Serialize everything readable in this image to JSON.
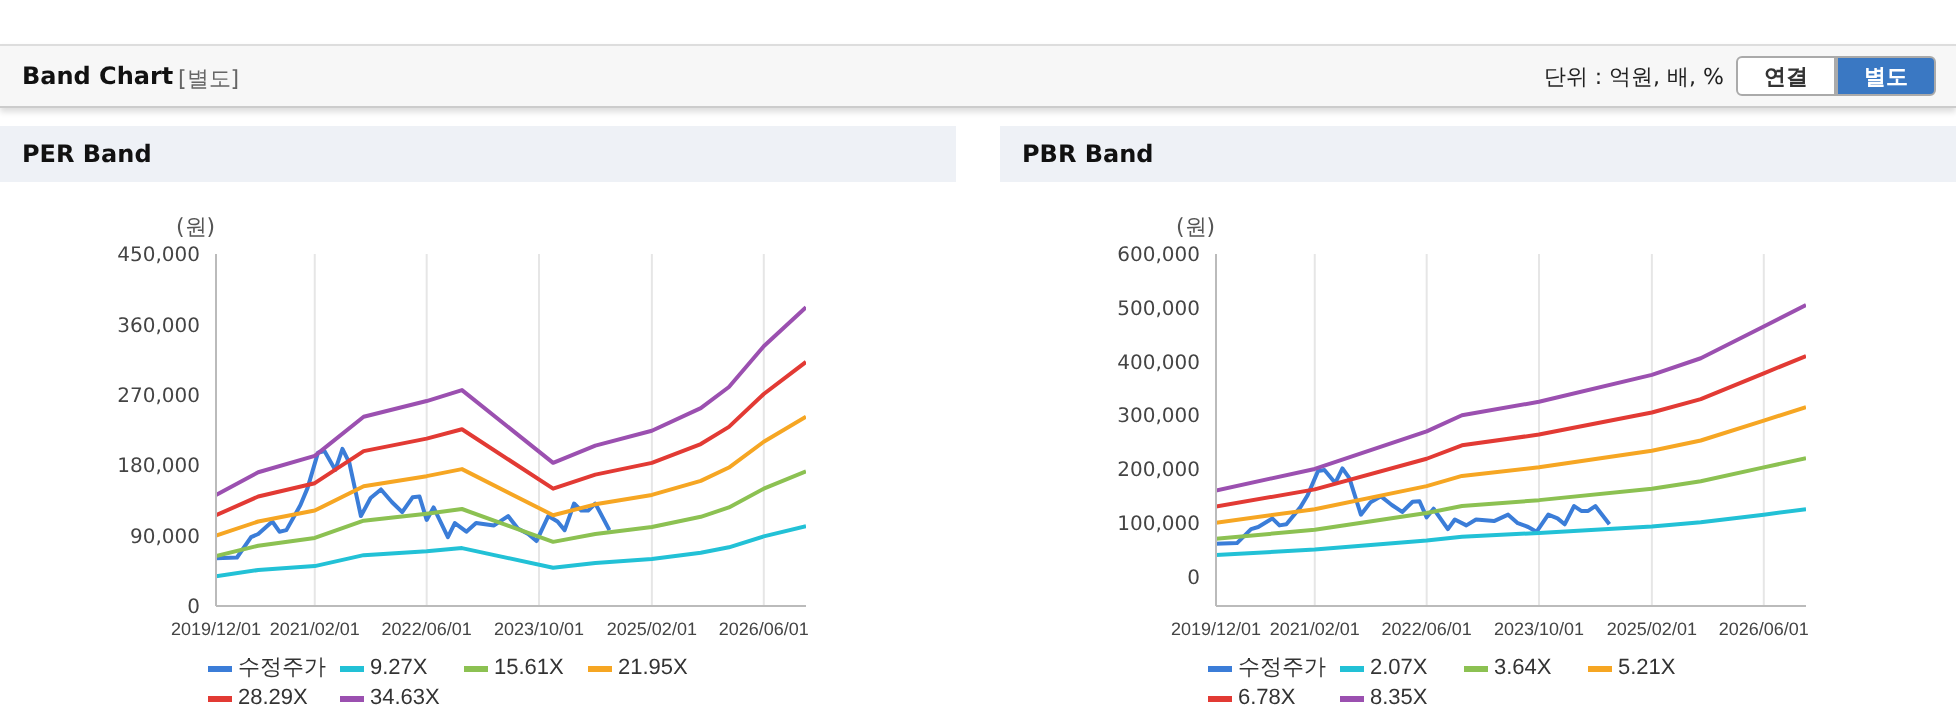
{
  "chart_data": [
    {
      "type": "other",
      "title": "Band Chart",
      "subtitle": "[별도]",
      "annotations": [
        "단위 : 억원, 배, %",
        "연결",
        "별도"
      ]
    },
    {
      "type": "line",
      "title": "PER Band",
      "ylabel": "(원)",
      "x": [
        "2019-12-01",
        "2020-06-01",
        "2021-02-01",
        "2021-09-01",
        "2022-06-01",
        "2022-11-01",
        "2023-12-01",
        "2024-06-01",
        "2025-02-01",
        "2025-09-01",
        "2026-01-01",
        "2026-06-01",
        "2026-12-01"
      ],
      "xlim": [
        "2019-12-01",
        "2026-12-01"
      ],
      "xticks": [
        {
          "value": "2019-12-01",
          "label": "2019/12/01"
        },
        {
          "value": "2021-02-01",
          "label": "2021/02/01"
        },
        {
          "value": "2022-06-01",
          "label": "2022/06/01"
        },
        {
          "value": "2023-10-01",
          "label": "2023/10/01"
        },
        {
          "value": "2025-02-01",
          "label": "2025/02/01"
        },
        {
          "value": "2026-06-01",
          "label": "2026/06/01"
        }
      ],
      "ylim": [
        0,
        450000
      ],
      "yticks": [
        0,
        {
          "value": 90000,
          "label": "90,000"
        },
        {
          "value": 180000,
          "label": "180,000"
        },
        {
          "value": 270000,
          "label": "270,000"
        },
        {
          "value": 360000,
          "label": "360,000"
        },
        {
          "value": 450000,
          "label": "450,000"
        }
      ],
      "grid": true,
      "legend": "bottom",
      "marker": "none",
      "line_style": "solid",
      "series": [
        {
          "name": "수정주가",
          "color": "#3b7dd8",
          "x": [
            "2019-12-01",
            "2020-03-01",
            "2020-05-01",
            "2020-06-01",
            "2020-08-01",
            "2020-09-01",
            "2020-10-01",
            "2020-12-01",
            "2021-01-01",
            "2021-02-15",
            "2021-03-15",
            "2021-05-01",
            "2021-06-01",
            "2021-07-01",
            "2021-08-20",
            "2021-10-01",
            "2021-11-15",
            "2022-01-01",
            "2022-02-15",
            "2022-04-01",
            "2022-05-01",
            "2022-06-01",
            "2022-07-01",
            "2022-09-01",
            "2022-10-01",
            "2022-11-20",
            "2023-01-01",
            "2023-03-20",
            "2023-05-20",
            "2023-07-01",
            "2023-08-15",
            "2023-09-20",
            "2023-11-10",
            "2023-12-20",
            "2024-01-20",
            "2024-03-01",
            "2024-04-01",
            "2024-05-01",
            "2024-06-01",
            "2024-08-01"
          ],
          "values": [
            61000,
            62000,
            88000,
            92000,
            108000,
            95000,
            97000,
            129000,
            151000,
            196000,
            198000,
            174000,
            201000,
            183000,
            115000,
            138000,
            149000,
            133000,
            120000,
            139000,
            140000,
            110000,
            126000,
            88000,
            106000,
            95000,
            106000,
            103000,
            115000,
            99000,
            92000,
            83000,
            115000,
            108000,
            97000,
            131000,
            122000,
            122000,
            131000,
            97000
          ]
        },
        {
          "name": "9.27X",
          "color": "#22c1d6",
          "values": [
            38000,
            46000,
            51000,
            65000,
            70000,
            74000,
            49000,
            55000,
            60000,
            68000,
            75000,
            89000,
            102000
          ]
        },
        {
          "name": "15.61X",
          "color": "#8cc152",
          "values": [
            64000,
            77000,
            87000,
            109000,
            118000,
            124000,
            82000,
            92000,
            101000,
            114000,
            126000,
            150000,
            172000
          ]
        },
        {
          "name": "21.95X",
          "color": "#f6a623",
          "values": [
            90000,
            108000,
            122000,
            153000,
            166000,
            175000,
            116000,
            130000,
            142000,
            160000,
            177000,
            210000,
            242000
          ]
        },
        {
          "name": "28.29X",
          "color": "#e23a34",
          "values": [
            116000,
            140000,
            157000,
            198000,
            214000,
            226000,
            150000,
            168000,
            183000,
            207000,
            229000,
            271000,
            312000
          ]
        },
        {
          "name": "34.63X",
          "color": "#9b50b0",
          "values": [
            142000,
            171000,
            192000,
            242000,
            262000,
            276000,
            183000,
            205000,
            224000,
            253000,
            280000,
            332000,
            382000
          ]
        }
      ]
    },
    {
      "type": "line",
      "title": "PBR Band",
      "ylabel": "(원)",
      "x": [
        "2019-12-01",
        "2021-02-01",
        "2022-06-01",
        "2022-11-01",
        "2023-10-01",
        "2025-02-01",
        "2025-09-01",
        "2026-06-01",
        "2026-12-01"
      ],
      "xlim": [
        "2019-12-01",
        "2026-12-01"
      ],
      "xticks": [
        {
          "value": "2019-12-01",
          "label": "2019/12/01"
        },
        {
          "value": "2021-02-01",
          "label": "2021/02/01"
        },
        {
          "value": "2022-06-01",
          "label": "2022/06/01"
        },
        {
          "value": "2023-10-01",
          "label": "2023/10/01"
        },
        {
          "value": "2025-02-01",
          "label": "2025/02/01"
        },
        {
          "value": "2026-06-01",
          "label": "2026/06/01"
        }
      ],
      "ylim": [
        -55000,
        600000
      ],
      "yticks": [
        0,
        {
          "value": 100000,
          "label": "100,000"
        },
        {
          "value": 200000,
          "label": "200,000"
        },
        {
          "value": 300000,
          "label": "300,000"
        },
        {
          "value": 400000,
          "label": "400,000"
        },
        {
          "value": 500000,
          "label": "500,000"
        },
        {
          "value": 600000,
          "label": "600,000"
        }
      ],
      "grid": true,
      "legend": "bottom",
      "marker": "none",
      "line_style": "solid",
      "series": [
        {
          "name": "수정주가",
          "color": "#3b7dd8",
          "x": [
            "2019-12-01",
            "2020-03-01",
            "2020-05-01",
            "2020-06-01",
            "2020-08-01",
            "2020-09-01",
            "2020-10-01",
            "2020-12-01",
            "2021-01-01",
            "2021-02-15",
            "2021-03-15",
            "2021-05-01",
            "2021-06-01",
            "2021-07-01",
            "2021-08-20",
            "2021-10-01",
            "2021-11-15",
            "2022-01-01",
            "2022-02-15",
            "2022-04-01",
            "2022-05-01",
            "2022-06-01",
            "2022-07-01",
            "2022-09-01",
            "2022-10-01",
            "2022-11-20",
            "2023-01-01",
            "2023-03-20",
            "2023-05-20",
            "2023-07-01",
            "2023-08-15",
            "2023-09-20",
            "2023-11-10",
            "2023-12-20",
            "2024-01-20",
            "2024-03-01",
            "2024-04-01",
            "2024-05-01",
            "2024-06-01",
            "2024-08-01"
          ],
          "values": [
            61000,
            62000,
            88000,
            92000,
            108000,
            95000,
            97000,
            129000,
            151000,
            196000,
            198000,
            174000,
            201000,
            183000,
            115000,
            138000,
            149000,
            133000,
            120000,
            139000,
            140000,
            110000,
            126000,
            88000,
            106000,
            95000,
            106000,
            103000,
            115000,
            99000,
            92000,
            83000,
            115000,
            108000,
            97000,
            131000,
            122000,
            122000,
            131000,
            97000
          ]
        },
        {
          "name": "2.07X",
          "color": "#22c1d6",
          "values": [
            40000,
            50000,
            67000,
            74000,
            81000,
            93000,
            101000,
            115000,
            125000
          ]
        },
        {
          "name": "3.64X",
          "color": "#8cc152",
          "values": [
            70000,
            87000,
            118000,
            131000,
            142000,
            163000,
            177000,
            203000,
            220000
          ]
        },
        {
          "name": "5.21X",
          "color": "#f6a623",
          "values": [
            100000,
            125000,
            168000,
            187000,
            203000,
            234000,
            253000,
            290000,
            315000
          ]
        },
        {
          "name": "6.78X",
          "color": "#e23a34",
          "values": [
            130000,
            162000,
            219000,
            244000,
            264000,
            305000,
            330000,
            378000,
            410000
          ]
        },
        {
          "name": "8.35X",
          "color": "#9b50b0",
          "values": [
            160000,
            200000,
            270000,
            300000,
            325000,
            375000,
            406000,
            465000,
            505000
          ]
        }
      ]
    }
  ]
}
